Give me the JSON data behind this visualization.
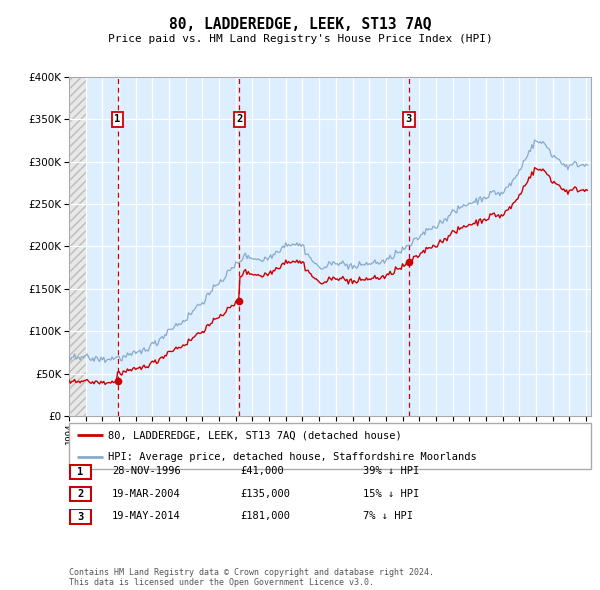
{
  "title": "80, LADDEREDGE, LEEK, ST13 7AQ",
  "subtitle": "Price paid vs. HM Land Registry's House Price Index (HPI)",
  "ylim": [
    0,
    400000
  ],
  "yticks": [
    0,
    50000,
    100000,
    150000,
    200000,
    250000,
    300000,
    350000,
    400000
  ],
  "xlim_start": 1994.0,
  "xlim_end": 2025.3,
  "bg_plot_color": "#ddeeff",
  "sale_color": "#cc0000",
  "hpi_line_color": "#88aacc",
  "legend_sale_label": "80, LADDEREDGE, LEEK, ST13 7AQ (detached house)",
  "legend_hpi_label": "HPI: Average price, detached house, Staffordshire Moorlands",
  "sales": [
    {
      "date_year": 1996.91,
      "price": 41000,
      "label": "1"
    },
    {
      "date_year": 2004.22,
      "price": 135000,
      "label": "2"
    },
    {
      "date_year": 2014.38,
      "price": 181000,
      "label": "3"
    }
  ],
  "table_rows": [
    {
      "num": "1",
      "date": "28-NOV-1996",
      "price": "£41,000",
      "hpi": "39% ↓ HPI"
    },
    {
      "num": "2",
      "date": "19-MAR-2004",
      "price": "£135,000",
      "hpi": "15% ↓ HPI"
    },
    {
      "num": "3",
      "date": "19-MAY-2014",
      "price": "£181,000",
      "hpi": "7% ↓ HPI"
    }
  ],
  "footer": "Contains HM Land Registry data © Crown copyright and database right 2024.\nThis data is licensed under the Open Government Licence v3.0.",
  "hatch_end_year": 1995.0
}
